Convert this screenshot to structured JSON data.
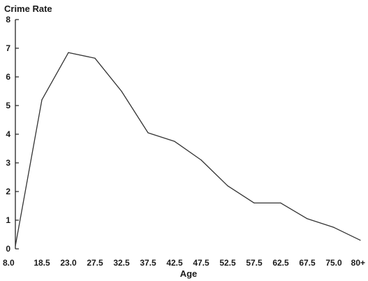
{
  "chart_data": {
    "type": "line",
    "title": "",
    "ylabel": "Crime Rate",
    "xlabel": "Age",
    "categories": [
      "8.0",
      "18.5",
      "23.0",
      "27.5",
      "32.5",
      "37.5",
      "42.5",
      "47.5",
      "52.5",
      "57.5",
      "62.5",
      "67.5",
      "75.0",
      "80+"
    ],
    "series": [
      {
        "values": [
          0.1,
          5.2,
          6.85,
          6.65,
          5.5,
          4.05,
          3.75,
          3.1,
          2.2,
          1.6,
          1.6,
          1.05,
          0.75,
          0.3
        ]
      }
    ],
    "ylim": [
      0,
      8
    ],
    "yticks": [
      "0",
      "1",
      "2",
      "3",
      "4",
      "5",
      "6",
      "7",
      "8"
    ],
    "grid": false,
    "legend": "none",
    "colors": {
      "line": "#333333",
      "axis": "#222222",
      "text": "#1a1a1a"
    }
  }
}
